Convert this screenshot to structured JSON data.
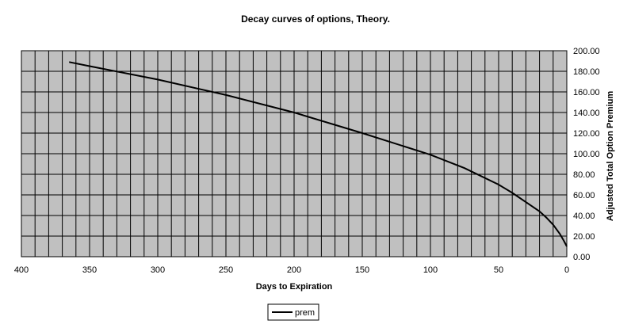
{
  "chart_data": {
    "type": "line",
    "title": "Decay curves of options, Theory.",
    "xlabel": "Days to Expiration",
    "ylabel": "Adjusted Total Option Premium",
    "xlim": [
      400,
      0
    ],
    "ylim": [
      0,
      200
    ],
    "x_reversed": true,
    "x_ticks": [
      400,
      350,
      300,
      250,
      200,
      150,
      100,
      50,
      0
    ],
    "y_ticks": [
      "0.00",
      "20.00",
      "40.00",
      "60.00",
      "80.00",
      "100.00",
      "120.00",
      "140.00",
      "160.00",
      "180.00",
      "200.00"
    ],
    "y_axis_side": "right",
    "grid": true,
    "plot_background": "#c0c0c0",
    "line_color": "#000000",
    "legend": {
      "position": "bottom-center",
      "entries": [
        "prem"
      ]
    },
    "series": [
      {
        "name": "prem",
        "x": [
          365,
          350,
          300,
          250,
          200,
          150,
          100,
          75,
          50,
          40,
          30,
          20,
          15,
          10,
          5,
          2,
          0
        ],
        "y": [
          189,
          185,
          172,
          157,
          140,
          120,
          99,
          86,
          70,
          62,
          53,
          44,
          38,
          31,
          22,
          15,
          10
        ]
      }
    ]
  }
}
